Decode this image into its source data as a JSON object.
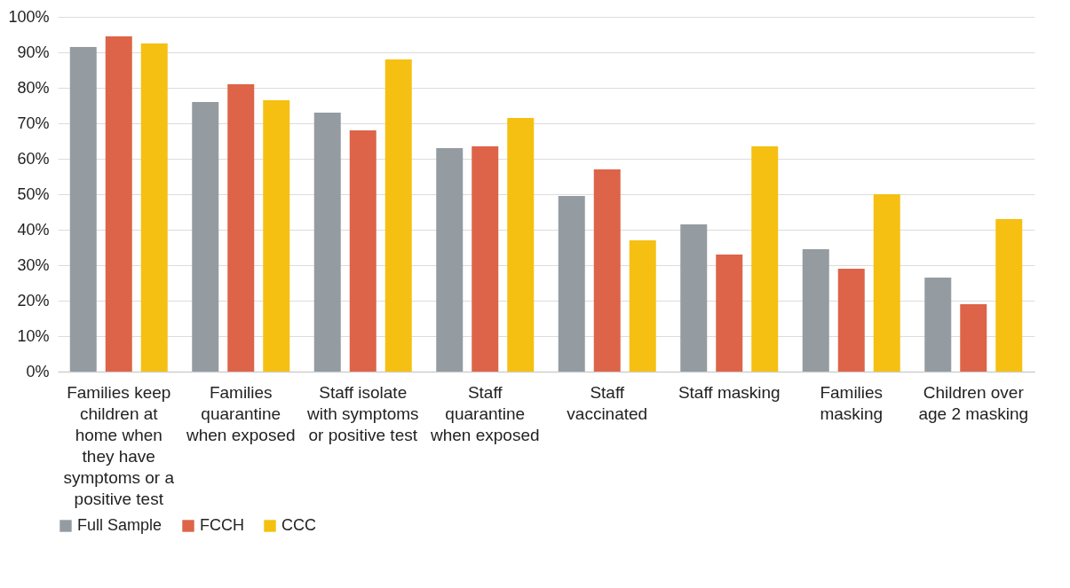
{
  "chart_data": {
    "type": "bar",
    "categories": [
      "Families keep children at home when they have symptoms or a positive test",
      "Families quarantine when exposed",
      "Staff isolate with symptoms or positive test",
      "Staff quarantine when exposed",
      "Staff vaccinated",
      "Staff masking",
      "Families masking",
      "Children over age 2 masking"
    ],
    "series": [
      {
        "name": "Full Sample",
        "color": "#949ba1",
        "values": [
          91.5,
          76,
          73,
          63,
          49.5,
          41.5,
          34.5,
          26.5
        ]
      },
      {
        "name": "FCCH",
        "color": "#dd6448",
        "values": [
          94.5,
          81,
          68,
          63.5,
          57,
          33,
          29,
          19
        ]
      },
      {
        "name": "CCC",
        "color": "#f5c012",
        "values": [
          92.5,
          76.5,
          88,
          71.5,
          37,
          63.5,
          50,
          43
        ]
      }
    ],
    "ylim": [
      0,
      100
    ],
    "yticks": [
      {
        "value": 0,
        "label": "0%"
      },
      {
        "value": 10,
        "label": "10%"
      },
      {
        "value": 20,
        "label": "20%"
      },
      {
        "value": 30,
        "label": "30%"
      },
      {
        "value": 40,
        "label": "40%"
      },
      {
        "value": 50,
        "label": "50%"
      },
      {
        "value": 60,
        "label": "60%"
      },
      {
        "value": 70,
        "label": "70%"
      },
      {
        "value": 80,
        "label": "80%"
      },
      {
        "value": 90,
        "label": "90%"
      },
      {
        "value": 100,
        "label": "100%"
      }
    ],
    "grid": "y",
    "legend": "bottom"
  }
}
